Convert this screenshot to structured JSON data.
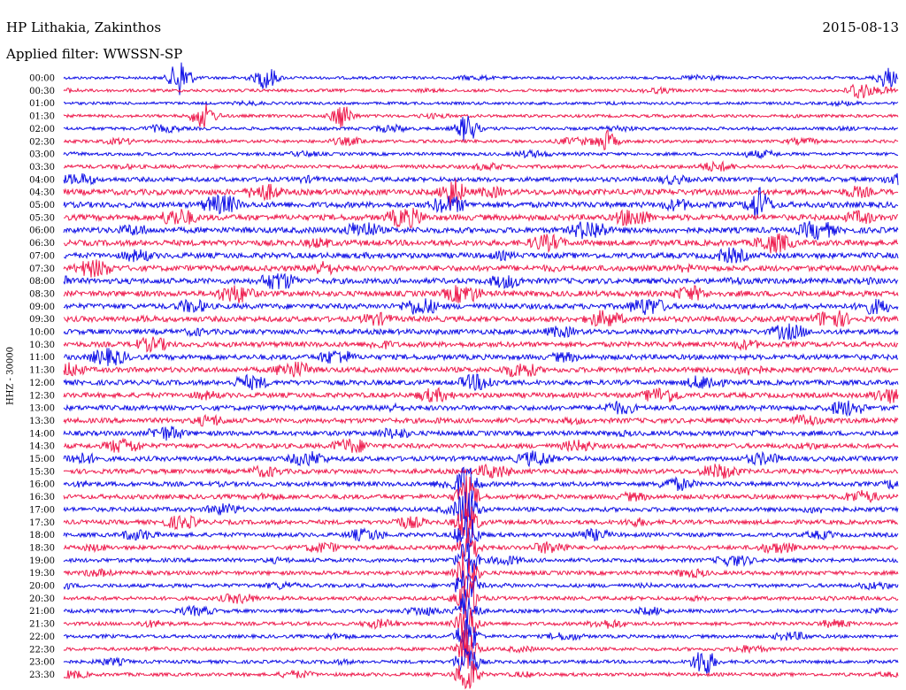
{
  "header": {
    "station": "HP Lithakia, Zakinthos",
    "filter": "Applied filter: WWSSN-SP",
    "date": "2015-08-13"
  },
  "chart_data": {
    "type": "line",
    "subtype": "helicorder",
    "ylabel": "HHZ - 30000",
    "row_labels": [
      "00:00",
      "00:30",
      "01:00",
      "01:30",
      "02:00",
      "02:30",
      "03:00",
      "03:30",
      "04:00",
      "04:30",
      "05:00",
      "05:30",
      "06:00",
      "06:30",
      "07:00",
      "07:30",
      "08:00",
      "08:30",
      "09:00",
      "09:30",
      "10:00",
      "10:30",
      "11:00",
      "11:30",
      "12:00",
      "12:30",
      "13:00",
      "13:30",
      "14:00",
      "14:30",
      "15:00",
      "15:30",
      "16:00",
      "16:30",
      "17:00",
      "17:30",
      "18:00",
      "18:30",
      "19:00",
      "19:30",
      "20:00",
      "20:30",
      "21:00",
      "21:30",
      "22:00",
      "22:30",
      "23:00",
      "23:30"
    ],
    "trace_colors": [
      "#1010e6",
      "#ee1c4e"
    ],
    "grid": false,
    "row_activity": [
      0.25,
      0.3,
      0.25,
      0.3,
      0.35,
      0.35,
      0.35,
      0.5,
      0.7,
      1.0,
      1.0,
      1.0,
      1.0,
      1.0,
      0.95,
      0.95,
      0.95,
      0.95,
      0.9,
      0.9,
      0.85,
      0.85,
      0.85,
      0.85,
      0.8,
      0.8,
      0.8,
      0.8,
      0.75,
      0.75,
      0.75,
      0.75,
      0.7,
      0.7,
      0.65,
      0.65,
      0.6,
      0.6,
      0.55,
      0.55,
      0.5,
      0.5,
      0.45,
      0.45,
      0.4,
      0.4,
      0.4,
      0.4
    ],
    "events": [
      {
        "row": 0,
        "minute": 4.2,
        "amp": 1.0
      },
      {
        "row": 0,
        "minute": 7.3,
        "amp": 0.6
      },
      {
        "row": 0,
        "minute": 29.6,
        "amp": 0.5
      },
      {
        "row": 1,
        "minute": 28.6,
        "amp": 0.5
      },
      {
        "row": 3,
        "minute": 5.0,
        "amp": 0.5
      },
      {
        "row": 3,
        "minute": 10.0,
        "amp": 0.6
      },
      {
        "row": 4,
        "minute": 14.5,
        "amp": 0.7
      },
      {
        "row": 5,
        "minute": 19.5,
        "amp": 0.5
      },
      {
        "row": 9,
        "minute": 14.0,
        "amp": 0.8
      },
      {
        "row": 10,
        "minute": 25.0,
        "amp": 0.8
      },
      {
        "row": 32,
        "minute": 14.5,
        "amp": 1.0
      },
      {
        "row": 33,
        "minute": 14.5,
        "amp": 1.0
      },
      {
        "row": 34,
        "minute": 14.5,
        "amp": 1.0
      },
      {
        "row": 35,
        "minute": 14.5,
        "amp": 1.0
      },
      {
        "row": 36,
        "minute": 14.5,
        "amp": 1.0
      },
      {
        "row": 37,
        "minute": 14.5,
        "amp": 1.0
      },
      {
        "row": 38,
        "minute": 14.5,
        "amp": 1.0
      },
      {
        "row": 39,
        "minute": 14.5,
        "amp": 1.0
      },
      {
        "row": 40,
        "minute": 14.5,
        "amp": 1.0
      },
      {
        "row": 41,
        "minute": 14.5,
        "amp": 1.0
      },
      {
        "row": 42,
        "minute": 14.5,
        "amp": 1.0
      },
      {
        "row": 43,
        "minute": 14.5,
        "amp": 1.0
      },
      {
        "row": 44,
        "minute": 14.5,
        "amp": 1.0
      },
      {
        "row": 45,
        "minute": 14.5,
        "amp": 1.0
      },
      {
        "row": 46,
        "minute": 14.5,
        "amp": 1.0
      },
      {
        "row": 47,
        "minute": 14.5,
        "amp": 1.0
      },
      {
        "row": 46,
        "minute": 23.0,
        "amp": 0.7
      }
    ]
  }
}
